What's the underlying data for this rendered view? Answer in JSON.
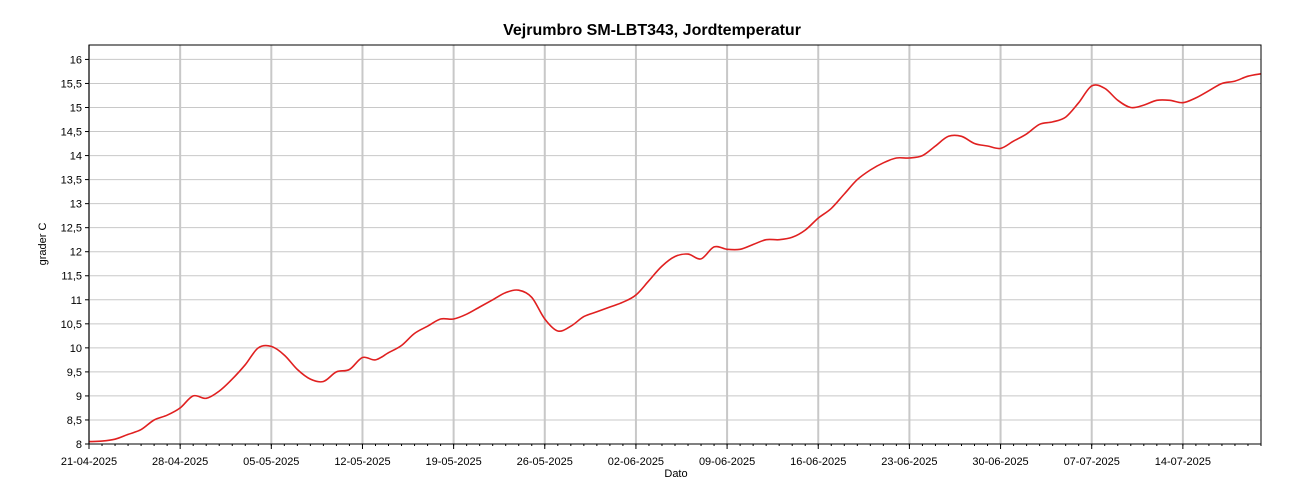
{
  "chart_data": {
    "type": "line",
    "title": "Vejrumbro SM-LBT343, Jordtemperatur",
    "xlabel": "Dato",
    "ylabel": "grader C",
    "x_ticks": [
      "21-04-2025",
      "28-04-2025",
      "05-05-2025",
      "12-05-2025",
      "19-05-2025",
      "26-05-2025",
      "02-06-2025",
      "09-06-2025",
      "16-06-2025",
      "23-06-2025",
      "30-06-2025",
      "07-07-2025",
      "14-07-2025"
    ],
    "y_ticks": [
      "8",
      "8,5",
      "9",
      "9,5",
      "10",
      "10,5",
      "11",
      "11,5",
      "12",
      "12,5",
      "13",
      "13,5",
      "14",
      "14,5",
      "15",
      "15,5",
      "16"
    ],
    "xlim": [
      "2025-04-21",
      "2025-07-20"
    ],
    "ylim": [
      8,
      16.3
    ],
    "grid": true,
    "legend": "none",
    "series": [
      {
        "color": "#e02020",
        "points": [
          [
            "2025-04-21",
            8.05
          ],
          [
            "2025-04-22",
            8.06
          ],
          [
            "2025-04-23",
            8.1
          ],
          [
            "2025-04-24",
            8.2
          ],
          [
            "2025-04-25",
            8.3
          ],
          [
            "2025-04-26",
            8.5
          ],
          [
            "2025-04-27",
            8.6
          ],
          [
            "2025-04-28",
            8.75
          ],
          [
            "2025-04-29",
            9.0
          ],
          [
            "2025-04-30",
            8.95
          ],
          [
            "2025-05-01",
            9.1
          ],
          [
            "2025-05-02",
            9.35
          ],
          [
            "2025-05-03",
            9.65
          ],
          [
            "2025-05-04",
            10.0
          ],
          [
            "2025-05-05",
            10.03
          ],
          [
            "2025-05-06",
            9.85
          ],
          [
            "2025-05-07",
            9.55
          ],
          [
            "2025-05-08",
            9.35
          ],
          [
            "2025-05-09",
            9.3
          ],
          [
            "2025-05-10",
            9.5
          ],
          [
            "2025-05-11",
            9.55
          ],
          [
            "2025-05-12",
            9.8
          ],
          [
            "2025-05-13",
            9.75
          ],
          [
            "2025-05-14",
            9.9
          ],
          [
            "2025-05-15",
            10.05
          ],
          [
            "2025-05-16",
            10.3
          ],
          [
            "2025-05-17",
            10.45
          ],
          [
            "2025-05-18",
            10.6
          ],
          [
            "2025-05-19",
            10.6
          ],
          [
            "2025-05-20",
            10.7
          ],
          [
            "2025-05-21",
            10.85
          ],
          [
            "2025-05-22",
            11.0
          ],
          [
            "2025-05-23",
            11.15
          ],
          [
            "2025-05-24",
            11.2
          ],
          [
            "2025-05-25",
            11.05
          ],
          [
            "2025-05-26",
            10.6
          ],
          [
            "2025-05-27",
            10.35
          ],
          [
            "2025-05-28",
            10.45
          ],
          [
            "2025-05-29",
            10.65
          ],
          [
            "2025-05-30",
            10.75
          ],
          [
            "2025-05-31",
            10.85
          ],
          [
            "2025-06-01",
            10.95
          ],
          [
            "2025-06-02",
            11.1
          ],
          [
            "2025-06-03",
            11.4
          ],
          [
            "2025-06-04",
            11.7
          ],
          [
            "2025-06-05",
            11.9
          ],
          [
            "2025-06-06",
            11.95
          ],
          [
            "2025-06-07",
            11.85
          ],
          [
            "2025-06-08",
            12.1
          ],
          [
            "2025-06-09",
            12.05
          ],
          [
            "2025-06-10",
            12.05
          ],
          [
            "2025-06-11",
            12.15
          ],
          [
            "2025-06-12",
            12.25
          ],
          [
            "2025-06-13",
            12.25
          ],
          [
            "2025-06-14",
            12.3
          ],
          [
            "2025-06-15",
            12.45
          ],
          [
            "2025-06-16",
            12.7
          ],
          [
            "2025-06-17",
            12.9
          ],
          [
            "2025-06-18",
            13.2
          ],
          [
            "2025-06-19",
            13.5
          ],
          [
            "2025-06-20",
            13.7
          ],
          [
            "2025-06-21",
            13.85
          ],
          [
            "2025-06-22",
            13.95
          ],
          [
            "2025-06-23",
            13.95
          ],
          [
            "2025-06-24",
            14.0
          ],
          [
            "2025-06-25",
            14.2
          ],
          [
            "2025-06-26",
            14.4
          ],
          [
            "2025-06-27",
            14.4
          ],
          [
            "2025-06-28",
            14.25
          ],
          [
            "2025-06-29",
            14.2
          ],
          [
            "2025-06-30",
            14.15
          ],
          [
            "2025-07-01",
            14.3
          ],
          [
            "2025-07-02",
            14.45
          ],
          [
            "2025-07-03",
            14.65
          ],
          [
            "2025-07-04",
            14.7
          ],
          [
            "2025-07-05",
            14.8
          ],
          [
            "2025-07-06",
            15.1
          ],
          [
            "2025-07-07",
            15.45
          ],
          [
            "2025-07-08",
            15.4
          ],
          [
            "2025-07-09",
            15.15
          ],
          [
            "2025-07-10",
            15.0
          ],
          [
            "2025-07-11",
            15.05
          ],
          [
            "2025-07-12",
            15.15
          ],
          [
            "2025-07-13",
            15.15
          ],
          [
            "2025-07-14",
            15.1
          ],
          [
            "2025-07-15",
            15.2
          ],
          [
            "2025-07-16",
            15.35
          ],
          [
            "2025-07-17",
            15.5
          ],
          [
            "2025-07-18",
            15.55
          ],
          [
            "2025-07-19",
            15.65
          ],
          [
            "2025-07-20",
            15.7
          ]
        ]
      }
    ]
  }
}
